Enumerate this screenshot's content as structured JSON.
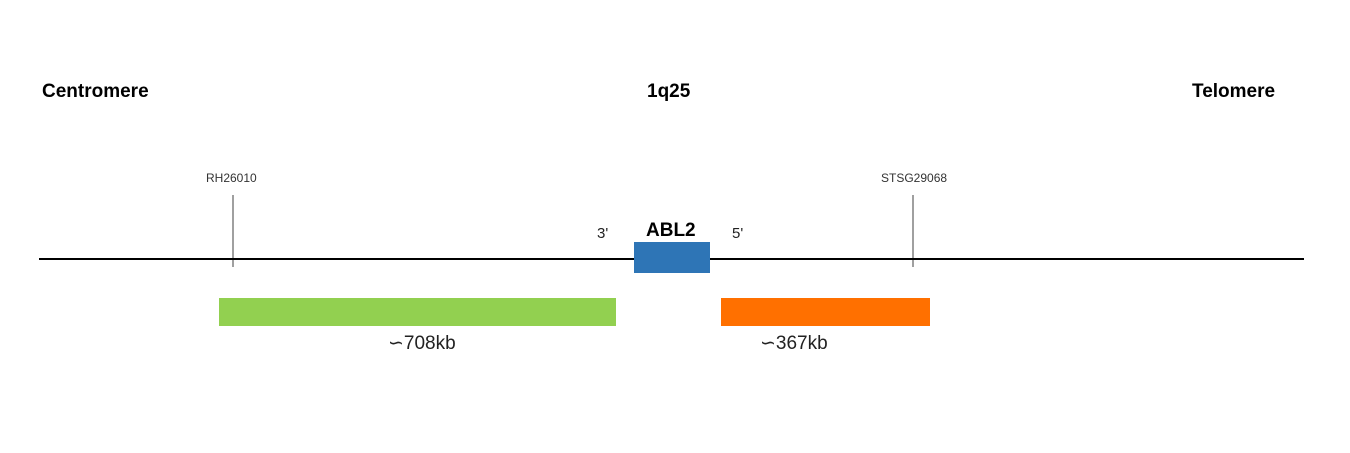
{
  "labels": {
    "centromere": "Centromere",
    "band": "1q25",
    "telomere": "Telomere"
  },
  "markers": {
    "left": "RH26010",
    "right": "STSG29068"
  },
  "gene": {
    "name": "ABL2",
    "three_prime": "3'",
    "five_prime": "5'",
    "color": "#2E75B6"
  },
  "regions": {
    "left": {
      "label": "∽708kb",
      "color": "#92D050"
    },
    "right": {
      "label": "∽367kb",
      "color": "#FF7000"
    }
  }
}
